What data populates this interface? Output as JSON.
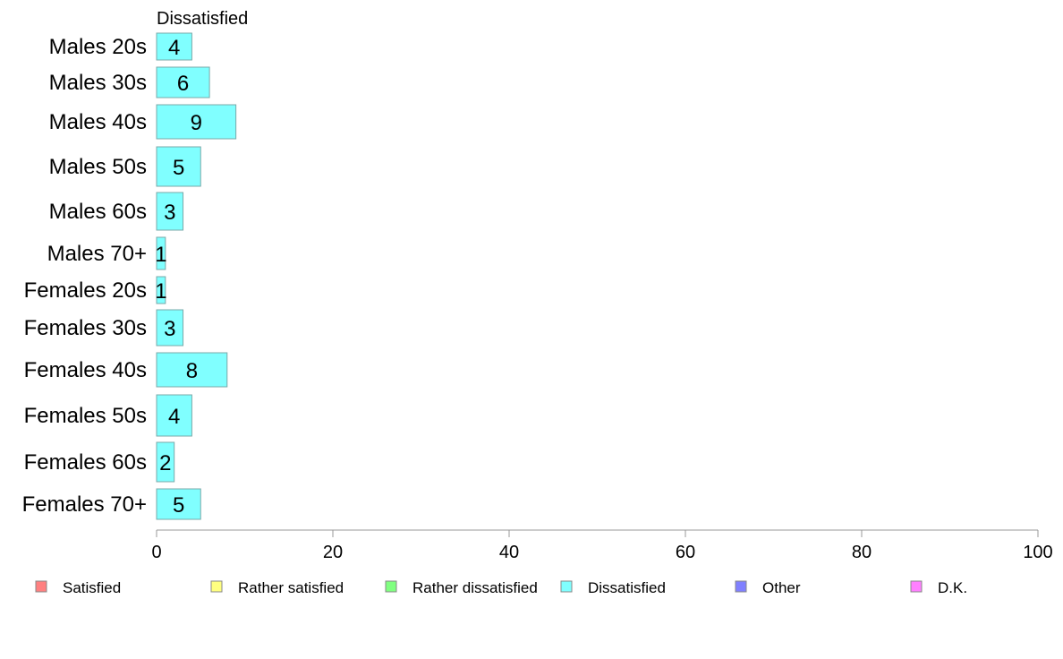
{
  "chart_data": {
    "type": "bar",
    "orientation": "horizontal",
    "title": "",
    "xlabel": "",
    "ylabel": "",
    "xlim": [
      0,
      100
    ],
    "x_ticks": [
      0,
      20,
      40,
      60,
      80,
      100
    ],
    "grid": false,
    "legend_position": "bottom",
    "categories": [
      "Males 20s",
      "Males 30s",
      "Males 40s",
      "Males 50s",
      "Males 60s",
      "Males 70+",
      "Females 20s",
      "Females 30s",
      "Females 40s",
      "Females 50s",
      "Females 60s",
      "Females 70+"
    ],
    "series": [
      {
        "name": "Dissatisfied",
        "color": "#80ffff",
        "values": [
          4,
          6,
          9,
          5,
          3,
          1,
          1,
          3,
          8,
          4,
          2,
          5
        ],
        "labels": [
          "4",
          "6",
          "9",
          "5",
          "3",
          "1",
          "1",
          "3",
          "8",
          "4",
          "2",
          "5"
        ]
      }
    ],
    "legend": [
      {
        "label": "Satisfied",
        "color": "#ff8080"
      },
      {
        "label": "Rather satisfied",
        "color": "#ffff80"
      },
      {
        "label": "Rather dissatisfied",
        "color": "#80ff80"
      },
      {
        "label": "Dissatisfied",
        "color": "#80ffff"
      },
      {
        "label": "Other",
        "color": "#8080ff"
      },
      {
        "label": "D.K.",
        "color": "#ff80ff"
      }
    ]
  }
}
